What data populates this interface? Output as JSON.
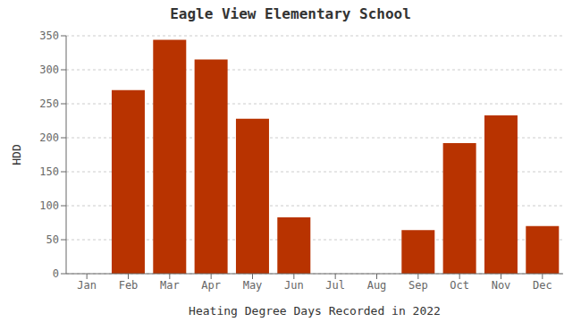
{
  "chart_data": {
    "type": "bar",
    "title": "Eagle View Elementary School",
    "xlabel": "Heating Degree Days Recorded in 2022",
    "ylabel": "HDD",
    "categories": [
      "Jan",
      "Feb",
      "Mar",
      "Apr",
      "May",
      "Jun",
      "Jul",
      "Aug",
      "Sep",
      "Oct",
      "Nov",
      "Dec"
    ],
    "values": [
      0,
      270,
      344,
      315,
      228,
      83,
      0,
      0,
      64,
      192,
      233,
      70
    ],
    "color": "#b83300",
    "ylim": [
      0,
      350
    ],
    "yticks": [
      0,
      50,
      100,
      150,
      200,
      250,
      300,
      350
    ],
    "grid": true
  }
}
